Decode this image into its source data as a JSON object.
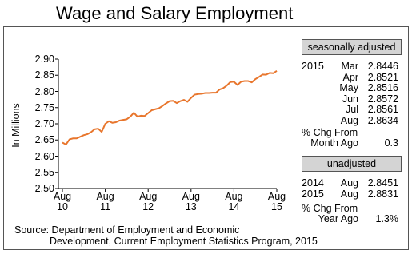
{
  "chart_data": {
    "type": "line",
    "title": "Wage and Salary Employment",
    "y_label": "In Millions",
    "categories": [
      "Aug 10",
      null,
      null,
      null,
      null,
      null,
      null,
      null,
      null,
      null,
      null,
      null,
      "Aug 11",
      null,
      null,
      null,
      null,
      null,
      null,
      null,
      null,
      null,
      null,
      null,
      "Aug 12",
      null,
      null,
      null,
      null,
      null,
      null,
      null,
      null,
      null,
      null,
      null,
      "Aug 13",
      null,
      null,
      null,
      null,
      null,
      null,
      null,
      null,
      null,
      null,
      null,
      "Aug 14",
      null,
      null,
      null,
      null,
      null,
      null,
      null,
      null,
      null,
      null,
      null,
      "Aug 15"
    ],
    "series": [
      {
        "name": "Wage and Salary Employment",
        "color": "#e8762d",
        "values": [
          2.642,
          2.636,
          2.652,
          2.655,
          2.655,
          2.66,
          2.665,
          2.668,
          2.674,
          2.683,
          2.685,
          2.675,
          2.7,
          2.708,
          2.703,
          2.705,
          2.71,
          2.712,
          2.714,
          2.722,
          2.734,
          2.722,
          2.725,
          2.724,
          2.733,
          2.742,
          2.745,
          2.748,
          2.755,
          2.763,
          2.77,
          2.771,
          2.764,
          2.77,
          2.774,
          2.768,
          2.78,
          2.79,
          2.792,
          2.793,
          2.795,
          2.795,
          2.796,
          2.796,
          2.806,
          2.81,
          2.818,
          2.829,
          2.83,
          2.82,
          2.83,
          2.832,
          2.832,
          2.828,
          2.838,
          2.8446,
          2.8521,
          2.8516,
          2.8572,
          2.8561,
          2.8634
        ]
      }
    ],
    "ylim": [
      2.5,
      2.9
    ],
    "yticks": [
      {
        "value": 2.9,
        "label": "2.90"
      },
      2.85,
      {
        "value": 2.8,
        "label": "2.80"
      },
      2.75,
      {
        "value": 2.7,
        "label": "2.70"
      },
      2.65,
      {
        "value": 2.6,
        "label": "2.60"
      },
      2.55,
      {
        "value": 2.5,
        "label": "2.50"
      }
    ],
    "grid": false
  },
  "panel": {
    "seasonal": {
      "title": "seasonally adjusted",
      "rows": [
        {
          "year": "2015",
          "month": "Mar",
          "value": "2.8446"
        },
        {
          "month": "Apr",
          "value": "2.8521"
        },
        {
          "month": "May",
          "value": "2.8516"
        },
        {
          "month": "Jun",
          "value": "2.8572"
        },
        {
          "month": "Jul",
          "value": "2.8561"
        },
        {
          "month": "Aug",
          "value": "2.8634"
        }
      ]
    },
    "month_change": {
      "label": [
        "% Chg From",
        "Month Ago"
      ],
      "value": "0.3"
    },
    "unadjusted": {
      "title": "unadjusted",
      "rows": [
        {
          "year": "2014",
          "month": "Aug",
          "value": "2.8451"
        },
        {
          "year": "2015",
          "month": "Aug",
          "value": "2.8831"
        }
      ]
    },
    "year_change": {
      "label": [
        "% Chg From",
        "Year Ago"
      ],
      "value": "1.3%"
    }
  },
  "source": [
    "Source: Department of Employment and Economic",
    "Development, Current Employment Statistics Program, 2015"
  ]
}
